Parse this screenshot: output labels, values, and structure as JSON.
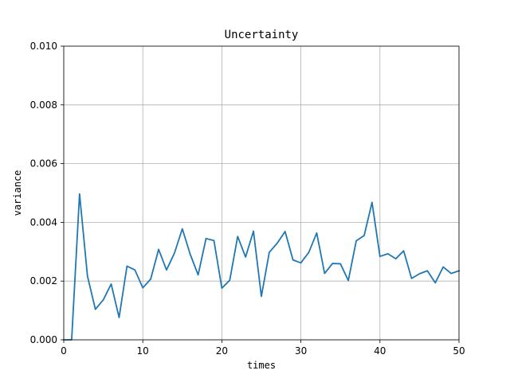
{
  "chart_data": {
    "type": "line",
    "title": "Uncertainty",
    "xlabel": "times",
    "ylabel": "variance",
    "xlim": [
      0,
      50
    ],
    "ylim": [
      0,
      0.01
    ],
    "xticks": [
      0,
      10,
      20,
      30,
      40,
      50
    ],
    "xtick_labels": [
      "0",
      "10",
      "20",
      "30",
      "40",
      "50"
    ],
    "yticks": [
      0,
      0.002,
      0.004,
      0.006,
      0.008,
      0.01
    ],
    "ytick_labels": [
      "0.000",
      "0.002",
      "0.004",
      "0.006",
      "0.008",
      "0.010"
    ],
    "grid": true,
    "line_color": "#1f77b4",
    "series": [
      {
        "x": [
          0,
          1,
          2,
          3,
          4,
          5,
          6,
          7,
          8,
          9,
          10,
          11,
          12,
          13,
          14,
          15,
          16,
          17,
          18,
          19,
          20,
          21,
          22,
          23,
          24,
          25,
          26,
          27,
          28,
          29,
          30,
          31,
          32,
          33,
          34,
          35,
          36,
          37,
          38,
          39,
          40,
          41,
          42,
          43,
          44,
          45,
          46,
          47,
          48,
          49,
          50
        ],
        "y": [
          0.0,
          0.0,
          0.00497,
          0.00217,
          0.00104,
          0.00136,
          0.0019,
          0.00076,
          0.00251,
          0.00238,
          0.00177,
          0.00207,
          0.00308,
          0.00238,
          0.00295,
          0.00378,
          0.00291,
          0.00221,
          0.00345,
          0.00338,
          0.00176,
          0.00203,
          0.00352,
          0.00282,
          0.0037,
          0.00148,
          0.00298,
          0.00329,
          0.00369,
          0.00272,
          0.00262,
          0.00298,
          0.00364,
          0.00226,
          0.0026,
          0.00259,
          0.00202,
          0.00337,
          0.00355,
          0.00468,
          0.00284,
          0.00293,
          0.00276,
          0.00303,
          0.00209,
          0.00225,
          0.00235,
          0.00194,
          0.00248,
          0.00226,
          0.00235
        ]
      }
    ]
  }
}
